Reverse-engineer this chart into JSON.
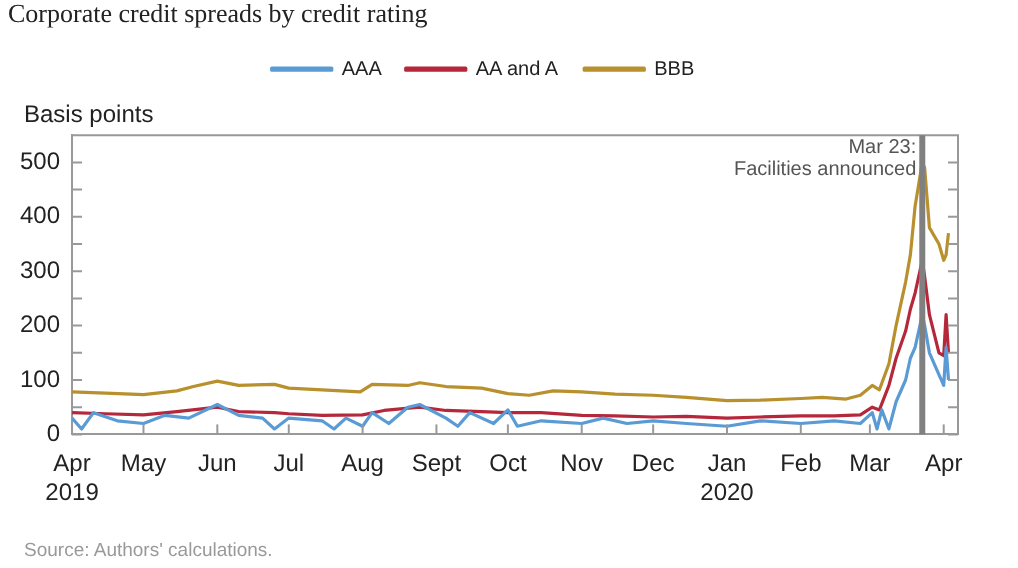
{
  "chart_data": {
    "type": "line",
    "title": "Corporate credit spreads by credit rating",
    "ylabel": "Basis points",
    "xlim": [
      "2019-04-01",
      "2020-04-07"
    ],
    "xticks": [
      {
        "value": "2019-04-01",
        "label": "Apr 2019"
      },
      {
        "value": "2019-05-01",
        "label": "May"
      },
      {
        "value": "2019-06-01",
        "label": "Jun"
      },
      {
        "value": "2019-07-01",
        "label": "Jul"
      },
      {
        "value": "2019-08-01",
        "label": "Aug"
      },
      {
        "value": "2019-09-01",
        "label": "Sept"
      },
      {
        "value": "2019-10-01",
        "label": "Oct"
      },
      {
        "value": "2019-11-01",
        "label": "Nov"
      },
      {
        "value": "2019-12-01",
        "label": "Dec"
      },
      {
        "value": "2020-01-01",
        "label": "Jan 2020"
      },
      {
        "value": "2020-02-01",
        "label": "Feb"
      },
      {
        "value": "2020-03-01",
        "label": "Mar"
      },
      {
        "value": "2020-04-01",
        "label": "Apr"
      }
    ],
    "ylim": [
      0,
      550
    ],
    "yticks": [
      0,
      {
        "value": 50,
        "label": null
      },
      100,
      {
        "value": 150,
        "label": null
      },
      200,
      {
        "value": 250,
        "label": null
      },
      300,
      {
        "value": 350,
        "label": null
      },
      400,
      {
        "value": 450,
        "label": null
      },
      500
    ],
    "grid": false,
    "legend": "top",
    "marker": "none",
    "line_style": "solid",
    "ref_lines": [
      {
        "axis": "x",
        "value": "2020-03-23",
        "label": "Mar 23:\nFacilities announced",
        "color": "#808080"
      }
    ],
    "annotations": [
      "Source: Authors' calculations."
    ],
    "series": [
      {
        "name": "AAA",
        "color": "#5b9bd5",
        "x": [
          "2019-04-01",
          "2019-04-05",
          "2019-04-10",
          "2019-04-20",
          "2019-05-01",
          "2019-05-10",
          "2019-05-20",
          "2019-06-01",
          "2019-06-10",
          "2019-06-20",
          "2019-06-25",
          "2019-07-01",
          "2019-07-15",
          "2019-07-20",
          "2019-07-25",
          "2019-08-01",
          "2019-08-05",
          "2019-08-12",
          "2019-08-20",
          "2019-08-25",
          "2019-09-05",
          "2019-09-10",
          "2019-09-15",
          "2019-09-25",
          "2019-10-01",
          "2019-10-05",
          "2019-10-15",
          "2019-11-01",
          "2019-11-10",
          "2019-11-20",
          "2019-12-01",
          "2019-12-15",
          "2020-01-01",
          "2020-01-15",
          "2020-02-01",
          "2020-02-15",
          "2020-02-26",
          "2020-03-02",
          "2020-03-04",
          "2020-03-06",
          "2020-03-09",
          "2020-03-12",
          "2020-03-16",
          "2020-03-18",
          "2020-03-20",
          "2020-03-23",
          "2020-03-24",
          "2020-03-26",
          "2020-03-30",
          "2020-04-01",
          "2020-04-02",
          "2020-04-03"
        ],
        "values": [
          30,
          10,
          40,
          25,
          20,
          35,
          30,
          55,
          35,
          30,
          10,
          30,
          25,
          10,
          30,
          15,
          40,
          20,
          50,
          55,
          30,
          15,
          40,
          20,
          45,
          15,
          25,
          20,
          30,
          20,
          25,
          20,
          15,
          25,
          20,
          25,
          20,
          40,
          10,
          45,
          10,
          60,
          100,
          140,
          160,
          220,
          200,
          150,
          110,
          90,
          160,
          100
        ]
      },
      {
        "name": "AA and A",
        "color": "#b5283b",
        "x": [
          "2019-04-01",
          "2019-04-15",
          "2019-05-01",
          "2019-05-15",
          "2019-06-01",
          "2019-06-10",
          "2019-06-25",
          "2019-07-01",
          "2019-07-15",
          "2019-08-01",
          "2019-08-10",
          "2019-08-25",
          "2019-09-05",
          "2019-09-20",
          "2019-10-01",
          "2019-10-15",
          "2019-11-01",
          "2019-11-15",
          "2019-12-01",
          "2019-12-15",
          "2020-01-01",
          "2020-01-15",
          "2020-02-01",
          "2020-02-15",
          "2020-02-26",
          "2020-03-02",
          "2020-03-05",
          "2020-03-09",
          "2020-03-12",
          "2020-03-16",
          "2020-03-18",
          "2020-03-20",
          "2020-03-23",
          "2020-03-24",
          "2020-03-26",
          "2020-03-30",
          "2020-04-01",
          "2020-04-02",
          "2020-04-03"
        ],
        "values": [
          40,
          38,
          36,
          42,
          50,
          42,
          40,
          38,
          35,
          36,
          44,
          50,
          44,
          42,
          40,
          40,
          35,
          34,
          32,
          33,
          30,
          32,
          34,
          34,
          36,
          50,
          45,
          90,
          140,
          190,
          230,
          260,
          320,
          290,
          220,
          150,
          145,
          220,
          150
        ]
      },
      {
        "name": "BBB",
        "color": "#b8902e",
        "x": [
          "2019-04-01",
          "2019-04-15",
          "2019-05-01",
          "2019-05-15",
          "2019-05-22",
          "2019-06-01",
          "2019-06-10",
          "2019-06-25",
          "2019-07-01",
          "2019-07-15",
          "2019-07-31",
          "2019-08-05",
          "2019-08-20",
          "2019-08-25",
          "2019-09-05",
          "2019-09-20",
          "2019-10-01",
          "2019-10-10",
          "2019-10-20",
          "2019-11-01",
          "2019-11-15",
          "2019-12-01",
          "2019-12-15",
          "2020-01-01",
          "2020-01-15",
          "2020-02-01",
          "2020-02-10",
          "2020-02-20",
          "2020-02-26",
          "2020-03-02",
          "2020-03-05",
          "2020-03-09",
          "2020-03-12",
          "2020-03-16",
          "2020-03-18",
          "2020-03-20",
          "2020-03-23",
          "2020-03-24",
          "2020-03-26",
          "2020-03-30",
          "2020-04-01",
          "2020-04-02",
          "2020-04-03"
        ],
        "values": [
          78,
          76,
          73,
          80,
          88,
          98,
          90,
          92,
          85,
          82,
          78,
          92,
          90,
          95,
          88,
          85,
          75,
          72,
          80,
          78,
          74,
          72,
          68,
          62,
          63,
          66,
          68,
          65,
          72,
          90,
          82,
          130,
          200,
          280,
          330,
          420,
          500,
          490,
          380,
          350,
          320,
          330,
          370
        ]
      }
    ]
  }
}
